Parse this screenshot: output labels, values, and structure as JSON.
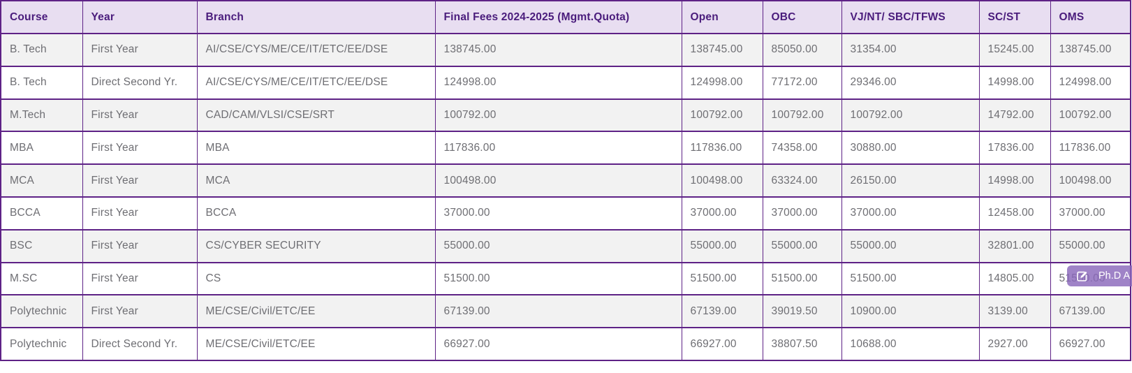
{
  "table": {
    "columns": [
      {
        "key": "course",
        "label": "Course"
      },
      {
        "key": "year",
        "label": "Year"
      },
      {
        "key": "branch",
        "label": "Branch"
      },
      {
        "key": "final_fees",
        "label": "Final Fees 2024-2025 (Mgmt.Quota)"
      },
      {
        "key": "open",
        "label": "Open"
      },
      {
        "key": "obc",
        "label": "OBC"
      },
      {
        "key": "vjnt_sbc_tfws",
        "label": "VJ/NT/ SBC/TFWS"
      },
      {
        "key": "sc_st",
        "label": "SC/ST"
      },
      {
        "key": "oms",
        "label": "OMS"
      }
    ],
    "rows": [
      [
        "B. Tech",
        "First Year",
        "AI/CSE/CYS/ME/CE/IT/ETC/EE/DSE",
        "138745.00",
        "138745.00",
        "85050.00",
        "31354.00",
        "15245.00",
        "138745.00"
      ],
      [
        "B. Tech",
        "Direct Second Yr.",
        "AI/CSE/CYS/ME/CE/IT/ETC/EE/DSE",
        "124998.00",
        "124998.00",
        "77172.00",
        "29346.00",
        "14998.00",
        "124998.00"
      ],
      [
        "M.Tech",
        "First Year",
        "CAD/CAM/VLSI/CSE/SRT",
        "100792.00",
        "100792.00",
        "100792.00",
        "100792.00",
        "14792.00",
        "100792.00"
      ],
      [
        "MBA",
        "First Year",
        "MBA",
        "117836.00",
        "117836.00",
        "74358.00",
        "30880.00",
        "17836.00",
        "117836.00"
      ],
      [
        "MCA",
        "First Year",
        "MCA",
        "100498.00",
        "100498.00",
        "63324.00",
        "26150.00",
        "14998.00",
        "100498.00"
      ],
      [
        "BCCA",
        "First Year",
        "BCCA",
        "37000.00",
        "37000.00",
        "37000.00",
        "37000.00",
        "12458.00",
        "37000.00"
      ],
      [
        "BSC",
        "First Year",
        "CS/CYBER SECURITY",
        "55000.00",
        "55000.00",
        "55000.00",
        "55000.00",
        "32801.00",
        "55000.00"
      ],
      [
        "M.SC",
        "First Year",
        "CS",
        "51500.00",
        "51500.00",
        "51500.00",
        "51500.00",
        "14805.00",
        "51500.00"
      ],
      [
        "Polytechnic",
        "First Year",
        "ME/CSE/Civil/ETC/EE",
        "67139.00",
        "67139.00",
        "39019.50",
        "10900.00",
        "3139.00",
        "67139.00"
      ],
      [
        "Polytechnic",
        "Direct Second Yr.",
        "ME/CSE/Civil/ETC/EE",
        "66927.00",
        "66927.00",
        "38807.50",
        "10688.00",
        "2927.00",
        "66927.00"
      ]
    ]
  },
  "badge": {
    "label": "Ph.D A",
    "icon": "edit-icon"
  },
  "colors": {
    "border": "#5e2286",
    "header_bg": "#e8def1",
    "header_text": "#4a1c7c",
    "row_alt_bg": "#f2f2f2",
    "cell_text": "#6e6e73",
    "badge_bg": "#8a68bb",
    "badge_text": "#ffffff"
  }
}
